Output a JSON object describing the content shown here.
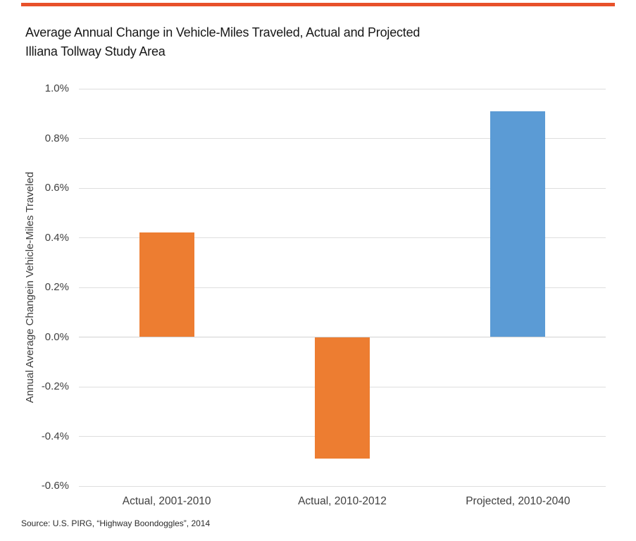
{
  "header": {
    "title_line1": "Average Annual Change in Vehicle-Miles Traveled, Actual and Projected",
    "title_line2": "Illiana Tollway Study Area"
  },
  "colors": {
    "top_rule": "#E8512A",
    "bar_actual_orange": "#ED7D31",
    "bar_projected_blue": "#5B9BD5",
    "gridline": "#DEDEDE",
    "zero_line": "#D2D2D2",
    "title_text": "#171717",
    "axis_text": "#3F3F3F"
  },
  "chart_data": {
    "type": "bar",
    "title": "Average Annual Change in Vehicle-Miles Traveled, Actual and Projected",
    "subtitle": "Illiana Tollway Study Area",
    "categories": [
      "Actual, 2001-2010",
      "Actual, 2010-2012",
      "Projected, 2010-2040"
    ],
    "values": [
      0.42,
      -0.49,
      0.91
    ],
    "unit": "%",
    "bar_colors": [
      "#ED7D31",
      "#ED7D31",
      "#5B9BD5"
    ],
    "xlabel": "",
    "ylabel": "Annual Average Changein Vehicle-Miles Traveled",
    "ylim": [
      -0.6,
      1.0
    ],
    "ytick_values": [
      1.0,
      0.8,
      0.6,
      0.4,
      0.2,
      0.0,
      -0.2,
      -0.4,
      -0.6
    ],
    "ytick_labels": [
      "1.0%",
      "0.8%",
      "0.6%",
      "0.4%",
      "0.2%",
      "0.0%",
      "-0.2%",
      "-0.4%",
      "-0.6%"
    ],
    "grid": true,
    "legend": false
  },
  "source": {
    "text": "Source: U.S. PIRG, “Highway Boondoggles”, 2014"
  }
}
